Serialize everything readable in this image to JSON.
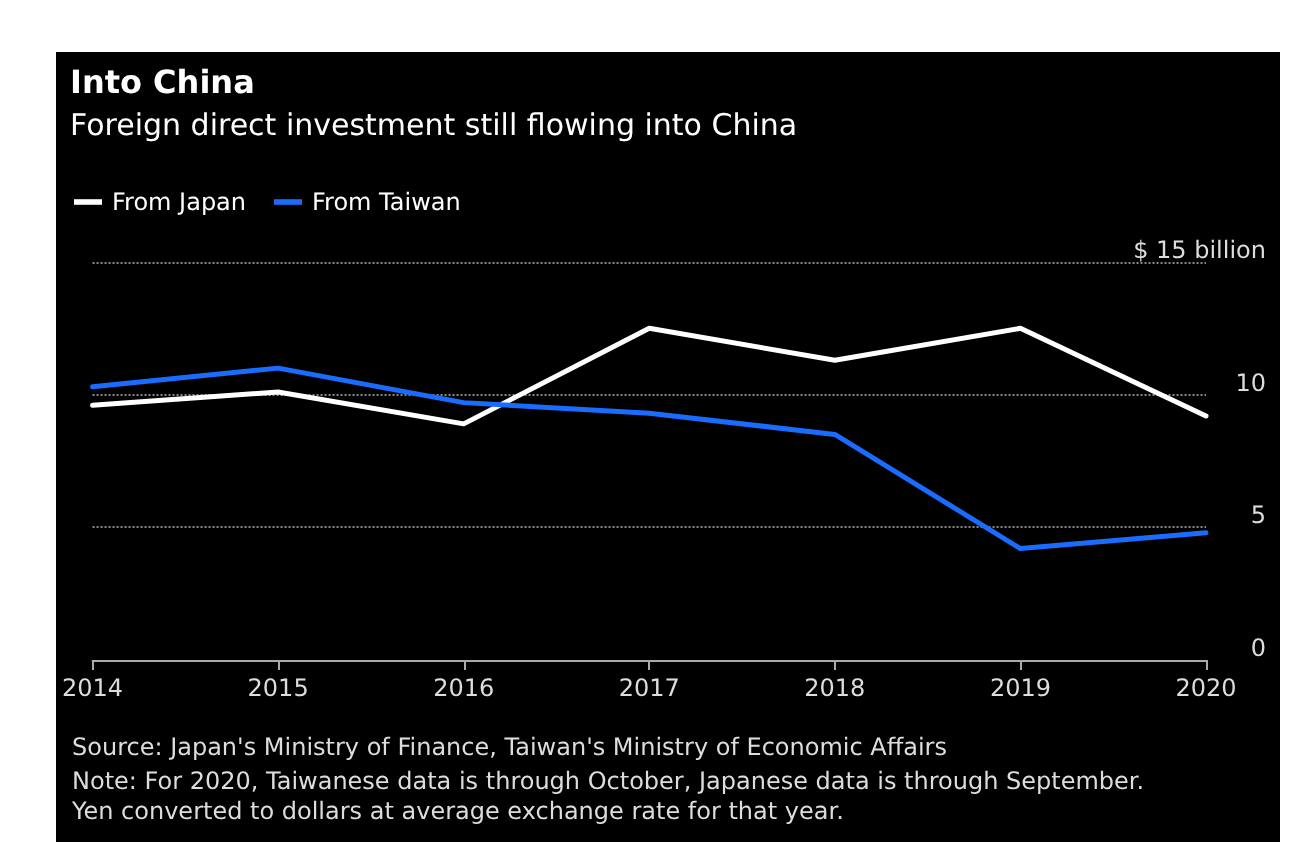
{
  "chart_data": {
    "type": "line",
    "title": "Into China",
    "subtitle": "Foreign direct investment still flowing into China",
    "categories": [
      "2014",
      "2015",
      "2016",
      "2017",
      "2018",
      "2019",
      "2020"
    ],
    "series": [
      {
        "name": "From Japan",
        "color": "#ffffff",
        "values": [
          9.6,
          10.1,
          8.9,
          12.5,
          11.3,
          12.5,
          9.2
        ]
      },
      {
        "name": "From Taiwan",
        "color": "#1a6cff",
        "values": [
          10.3,
          11.0,
          9.7,
          9.3,
          8.5,
          4.2,
          4.8
        ]
      }
    ],
    "ylim": [
      0,
      15
    ],
    "yticks": [
      0,
      5,
      10,
      {
        "value": 15,
        "label": "$ 15 billion"
      }
    ],
    "grid": "y",
    "legend": "top left",
    "marker": "none",
    "line_style": "solid",
    "annotations": [
      "Source: Japan's Ministry of Finance, Taiwan's Ministry of Economic Affairs",
      "Note: For 2020, Taiwanese data is through October, Japanese data is through September. Yen converted to dollars at average exchange rate for that year."
    ]
  }
}
